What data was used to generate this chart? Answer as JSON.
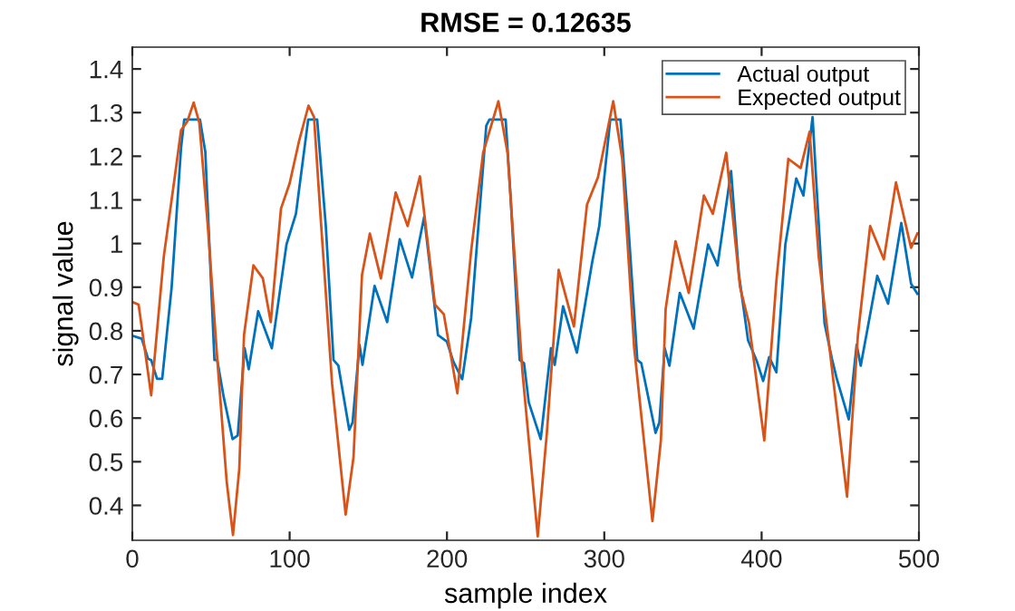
{
  "chart_data": {
    "type": "line",
    "title": "RMSE = 0.12635",
    "xlabel": "sample index",
    "ylabel": "signal value",
    "xlim": [
      0,
      500
    ],
    "xticks": [
      0,
      100,
      200,
      300,
      400,
      500
    ],
    "ylim": [
      0.32,
      1.45
    ],
    "yticks": [
      0.4,
      0.5,
      0.6,
      0.7,
      0.8,
      0.9,
      1,
      1.1,
      1.2,
      1.3,
      1.4
    ],
    "grid": false,
    "legend": "top right",
    "marker": "none",
    "line_style": "solid",
    "series": [
      {
        "name": "Actual output",
        "color": "#0072bd",
        "x": [
          0,
          6,
          10,
          12,
          15.7,
          19,
          25,
          31,
          33,
          43,
          46.4,
          52.2,
          54,
          58,
          63.7,
          67,
          71.4,
          74,
          80,
          88.7,
          98,
          104,
          111.8,
          117.5,
          123,
          127.9,
          131,
          137.9,
          140,
          144.4,
          146.3,
          154,
          162,
          170,
          177.8,
          185.5,
          194.3,
          200,
          204,
          209.7,
          215.4,
          225,
          227,
          237.3,
          240.4,
          246.2,
          249,
          252,
          259.6,
          266.1,
          268.5,
          273.8,
          282.6,
          292.3,
          296.8,
          303.8,
          310.3,
          315.3,
          321,
          323.5,
          332.6,
          335,
          338.4,
          341.4,
          348,
          356.8,
          366,
          372,
          380.6,
          385.6,
          391.4,
          396.7,
          401,
          404.8,
          409.4,
          415.1,
          422,
          426.6,
          432.4,
          434.3,
          440,
          444.7,
          447.8,
          455.4,
          460.4,
          463,
          473.5,
          480.4,
          488.8,
          495,
          499
        ],
        "values": [
          0.789,
          0.782,
          0.736,
          0.733,
          0.69,
          0.69,
          0.9,
          1.22,
          1.284,
          1.284,
          1.21,
          0.733,
          0.733,
          0.65,
          0.552,
          0.56,
          0.76,
          0.712,
          0.845,
          0.76,
          0.998,
          1.068,
          1.284,
          1.284,
          1.04,
          0.733,
          0.72,
          0.573,
          0.59,
          0.768,
          0.722,
          0.903,
          0.82,
          1.01,
          0.922,
          1.061,
          0.79,
          0.775,
          0.73,
          0.689,
          0.83,
          1.27,
          1.284,
          1.284,
          1.11,
          0.733,
          0.726,
          0.636,
          0.552,
          0.76,
          0.722,
          0.856,
          0.75,
          0.957,
          1.04,
          1.284,
          1.284,
          1.04,
          0.733,
          0.726,
          0.566,
          0.59,
          0.76,
          0.72,
          0.887,
          0.805,
          0.998,
          0.95,
          1.166,
          0.928,
          0.778,
          0.733,
          0.685,
          0.74,
          0.705,
          0.998,
          1.149,
          1.11,
          1.29,
          1.17,
          0.817,
          0.736,
          0.69,
          0.597,
          0.768,
          0.72,
          0.926,
          0.862,
          1.047,
          0.908,
          0.885
        ]
      },
      {
        "name": "Expected output",
        "color": "#d95319",
        "x": [
          0,
          4,
          12,
          20,
          27,
          31,
          35,
          39,
          42.6,
          48,
          54,
          60,
          64,
          68,
          71,
          77,
          83,
          88,
          94.5,
          100,
          106,
          112,
          115.5,
          119.5,
          127,
          135.6,
          140.6,
          146,
          151,
          158,
          167.4,
          175,
          182.8,
          192.4,
          198,
          206.6,
          215.4,
          223,
          232.7,
          238.5,
          248,
          257.7,
          263.5,
          271,
          280.7,
          289,
          296,
          305.7,
          311.4,
          319,
          330.6,
          336,
          339,
          345.3,
          353.7,
          363.3,
          369,
          377.5,
          386.3,
          392,
          401.7,
          409.4,
          417,
          424.8,
          430.5,
          436.3,
          445.9,
          454.3,
          461.2,
          469,
          477.7,
          485.4,
          495,
          499
        ],
        "values": [
          0.866,
          0.86,
          0.652,
          0.97,
          1.153,
          1.26,
          1.28,
          1.323,
          1.277,
          1.04,
          0.735,
          0.454,
          0.332,
          0.484,
          0.79,
          0.95,
          0.92,
          0.82,
          1.08,
          1.138,
          1.235,
          1.316,
          1.29,
          1.07,
          0.678,
          0.379,
          0.51,
          0.928,
          1.023,
          0.92,
          1.117,
          1.04,
          1.154,
          0.86,
          0.838,
          0.657,
          0.984,
          1.208,
          1.326,
          1.208,
          0.705,
          0.329,
          0.566,
          0.94,
          0.81,
          1.089,
          1.152,
          1.326,
          1.194,
          0.761,
          0.364,
          0.55,
          0.85,
          1.005,
          0.887,
          1.11,
          1.068,
          1.208,
          0.9,
          0.817,
          0.549,
          0.915,
          1.194,
          1.173,
          1.256,
          0.97,
          0.677,
          0.42,
          0.79,
          1.04,
          0.964,
          1.14,
          0.99,
          1.023
        ]
      }
    ]
  }
}
